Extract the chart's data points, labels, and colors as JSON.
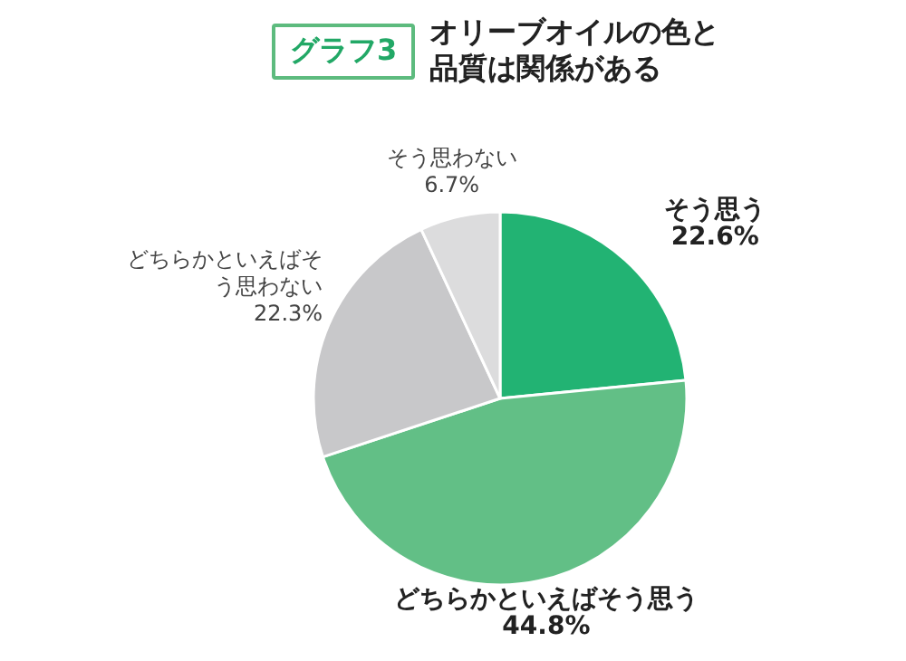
{
  "chart_data": {
    "type": "pie",
    "title": "オリーブオイルの色と品質は関係がある",
    "annotations": [
      "グラフ3"
    ],
    "categories": [
      "そう思う",
      "どちらかといえばそう思う",
      "どちらかといえばそう思わない",
      "そう思わない"
    ],
    "values": [
      22.6,
      44.8,
      22.3,
      6.7
    ],
    "value_labels": [
      "22.6%",
      "44.8%",
      "22.3%",
      "6.7%"
    ],
    "colors": [
      "#22b373",
      "#62bf86",
      "#c8c8ca",
      "#dcdcdd"
    ]
  }
}
